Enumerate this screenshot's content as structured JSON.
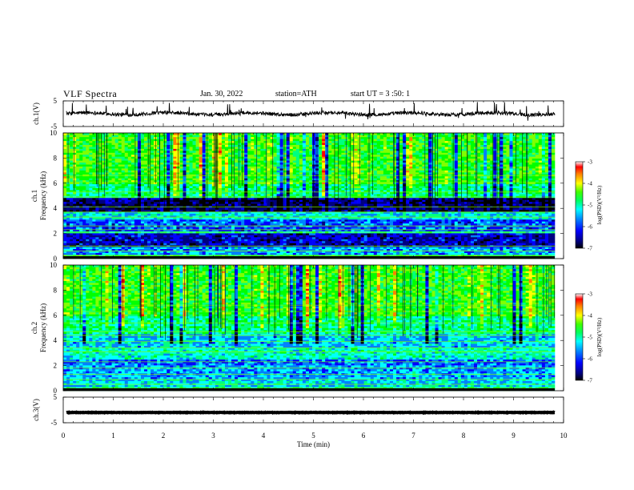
{
  "header": {
    "title": "VLF Spectra",
    "date": "Jan. 30, 2022",
    "station": "station=ATH",
    "start_ut": "start  UT  =   3  :50: 1"
  },
  "colors": {
    "colormap": [
      "#000000",
      "#000080",
      "#0000ff",
      "#0080ff",
      "#00ffff",
      "#00ff80",
      "#00ff00",
      "#80ff00",
      "#ffff00",
      "#ff8000",
      "#ff0000",
      "#ffffff"
    ],
    "trace": "#000000"
  },
  "chart_data": [
    {
      "type": "line",
      "name": "ch1-waveform",
      "ylabel": "ch.1(V)",
      "ylim": [
        -5,
        5
      ],
      "yticks": [
        "5",
        "-5"
      ],
      "xlim": [
        0,
        10
      ],
      "level": 0
    },
    {
      "type": "heatmap",
      "name": "ch1-spectrogram",
      "ylabel_channel": "ch.1",
      "ylabel": "Frequency  (kHz)",
      "ylim": [
        0,
        10
      ],
      "yticks": [
        "0",
        "2",
        "4",
        "6",
        "8",
        "10"
      ],
      "xlim": [
        0,
        9.8
      ],
      "colorbar": {
        "label": "log(PSD)(V²/Hz)",
        "range": [
          -7,
          -3
        ],
        "ticks": [
          "-3",
          "-4",
          "-5",
          "-6",
          "-7"
        ]
      }
    },
    {
      "type": "heatmap",
      "name": "ch2-spectrogram",
      "ylabel_channel": "ch.2",
      "ylabel": "Frequency  (kHz)",
      "ylim": [
        0,
        10
      ],
      "yticks": [
        "0",
        "2",
        "4",
        "6",
        "8",
        "10"
      ],
      "xlim": [
        0,
        9.8
      ],
      "colorbar": {
        "label": "log(PSD)(V²/Hz)",
        "range": [
          -7,
          -3
        ],
        "ticks": [
          "-3",
          "-4",
          "-5",
          "-6",
          "-7"
        ]
      }
    },
    {
      "type": "line",
      "name": "ch3-waveform",
      "ylabel": "ch.3(V)",
      "ylim": [
        -5,
        5
      ],
      "yticks": [
        "5",
        "-5"
      ],
      "xlim": [
        0,
        10
      ],
      "level": -1,
      "xlabel": "Time  (min)",
      "xticks": [
        "0",
        "1",
        "2",
        "3",
        "4",
        "5",
        "6",
        "7",
        "8",
        "9",
        "10"
      ]
    }
  ]
}
